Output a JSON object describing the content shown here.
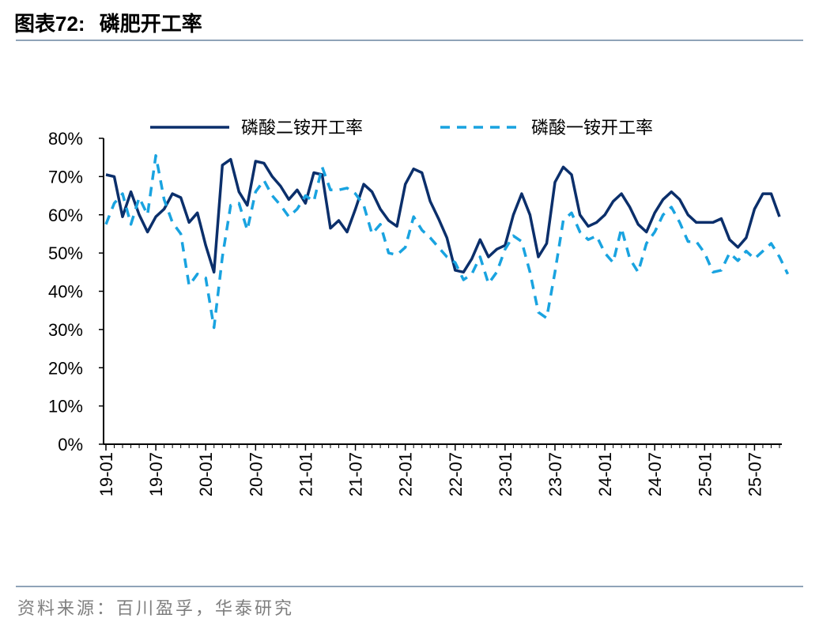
{
  "figure": {
    "title_prefix": "图表",
    "title_number": "72:",
    "title_text": "磷肥开工率",
    "source": "资料来源：百川盈孚，华泰研究"
  },
  "colors": {
    "dap": "#0b2f6b",
    "map": "#19a3e0",
    "axis": "#000000",
    "rule": "#8fa3b8"
  },
  "chart_data": {
    "type": "line",
    "title": "磷肥开工率",
    "xlabel": "",
    "ylabel": "",
    "ylim": [
      0,
      80
    ],
    "yticks": [
      "0%",
      "10%",
      "20%",
      "30%",
      "40%",
      "50%",
      "60%",
      "70%",
      "80%"
    ],
    "xticks": [
      "19-01",
      "19-07",
      "20-01",
      "20-07",
      "21-01",
      "21-07",
      "22-01",
      "22-07",
      "23-01",
      "23-07",
      "24-01",
      "24-07",
      "25-01",
      "25-07"
    ],
    "grid": false,
    "legend": "top",
    "series": [
      {
        "name": "磷酸二铵开工率",
        "style": "solid",
        "values": [
          70.5,
          70,
          59.5,
          66,
          60,
          55.5,
          59.5,
          61.5,
          65.5,
          64.5,
          58,
          60.5,
          52,
          45,
          73,
          74.5,
          66,
          62.5,
          74,
          73.5,
          70,
          67.5,
          64,
          66.5,
          63,
          71,
          70.5,
          56.5,
          58.5,
          55.5,
          61.5,
          68,
          66,
          61.5,
          58.5,
          57,
          68,
          72,
          71,
          63.5,
          59,
          54,
          45.5,
          45,
          48.5,
          53.5,
          49,
          51,
          52,
          60,
          65.5,
          60,
          49,
          52.5,
          68.5,
          72.5,
          70.5,
          60,
          57,
          58,
          60,
          63.5,
          65.5,
          62,
          57.5,
          55.5,
          60.5,
          64,
          66,
          64,
          60,
          58,
          58,
          58,
          59,
          53.5,
          51.5,
          54,
          61.5,
          65.5,
          65.5,
          59.5
        ]
      },
      {
        "name": "磷酸一铵开工率",
        "style": "dashed",
        "values": [
          57.5,
          63,
          65.5,
          57.5,
          64.5,
          60,
          75.5,
          64,
          58,
          55,
          41.5,
          44.5,
          43.5,
          30.5,
          49,
          62.5,
          63,
          56,
          66,
          69,
          65,
          62.5,
          59.5,
          61.5,
          65,
          63.5,
          72.5,
          66.5,
          66.5,
          67,
          65.5,
          62.5,
          55,
          57.5,
          50,
          49.5,
          51.5,
          59.5,
          56,
          54,
          51.5,
          49,
          47.5,
          43,
          44.5,
          49,
          42,
          45,
          51,
          54.5,
          53,
          45,
          34.5,
          33,
          45,
          58.5,
          60.5,
          55.5,
          53.5,
          54.5,
          50,
          47.5,
          56.5,
          48.5,
          45,
          52.5,
          55.5,
          60,
          62,
          58,
          53,
          53,
          50,
          45,
          45.5,
          50,
          48,
          50.5,
          48.5,
          50.5,
          52.5,
          49,
          44.5
        ]
      }
    ]
  }
}
